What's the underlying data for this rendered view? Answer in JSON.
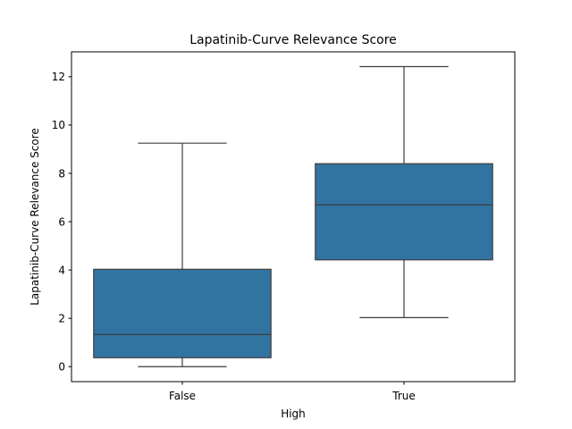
{
  "chart_data": {
    "type": "boxplot",
    "title": "Lapatinib-Curve Relevance Score",
    "xlabel": "High",
    "ylabel": "Lapatinib-Curve Relevance Score",
    "categories": [
      "False",
      "True"
    ],
    "boxes": [
      {
        "category": "False",
        "whisker_low": 0.0,
        "q1": 0.37,
        "median": 1.33,
        "q3": 4.03,
        "whisker_high": 9.25
      },
      {
        "category": "True",
        "whisker_low": 2.03,
        "q1": 4.42,
        "median": 6.7,
        "q3": 8.4,
        "whisker_high": 12.42
      }
    ],
    "ylim": [
      -0.62,
      13.03
    ],
    "yticks": [
      0,
      2,
      4,
      6,
      8,
      10,
      12
    ],
    "grid": false,
    "legend": "none",
    "colors": {
      "box_fill": "#3274a1",
      "line": "#3d3d3d"
    }
  }
}
